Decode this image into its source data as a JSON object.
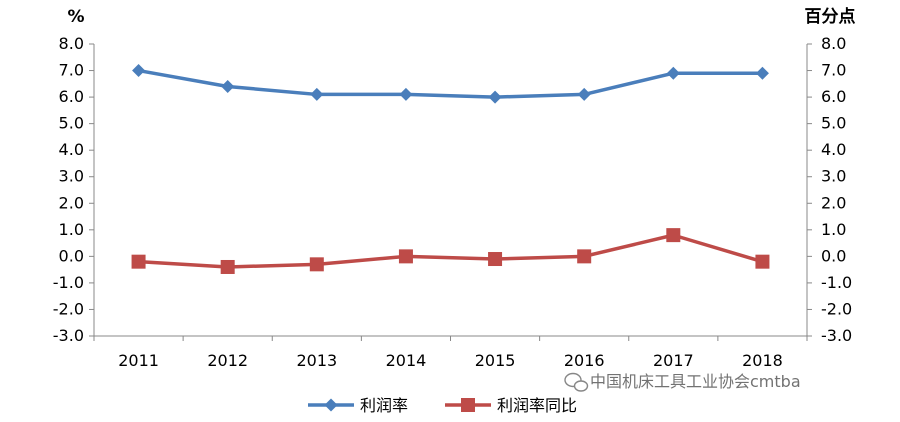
{
  "chart_data": {
    "type": "line",
    "categories": [
      "2011",
      "2012",
      "2013",
      "2014",
      "2015",
      "2016",
      "2017",
      "2018"
    ],
    "series": [
      {
        "name": "利润率",
        "color": "#4a7ebb",
        "marker": "diamond",
        "values": [
          7.0,
          6.4,
          6.1,
          6.1,
          6.0,
          6.1,
          6.9,
          6.9
        ]
      },
      {
        "name": "利润率同比",
        "color": "#be4b48",
        "marker": "square",
        "values": [
          -0.2,
          -0.4,
          -0.3,
          0.0,
          -0.1,
          0.0,
          0.8,
          -0.2
        ]
      }
    ],
    "left_unit": "%",
    "right_unit": "百分点",
    "ylim": [
      -3.0,
      8.0
    ],
    "ytick_step": 1.0,
    "ytick_labels": [
      "8.0",
      "7.0",
      "6.0",
      "5.0",
      "4.0",
      "3.0",
      "2.0",
      "1.0",
      "0.0",
      "-1.0",
      "-2.0",
      "-3.0"
    ],
    "grid": false,
    "legend_position": "bottom"
  },
  "watermark": {
    "text": "中国机床工具工业协会cmtba",
    "icon": "wechat-icon"
  }
}
